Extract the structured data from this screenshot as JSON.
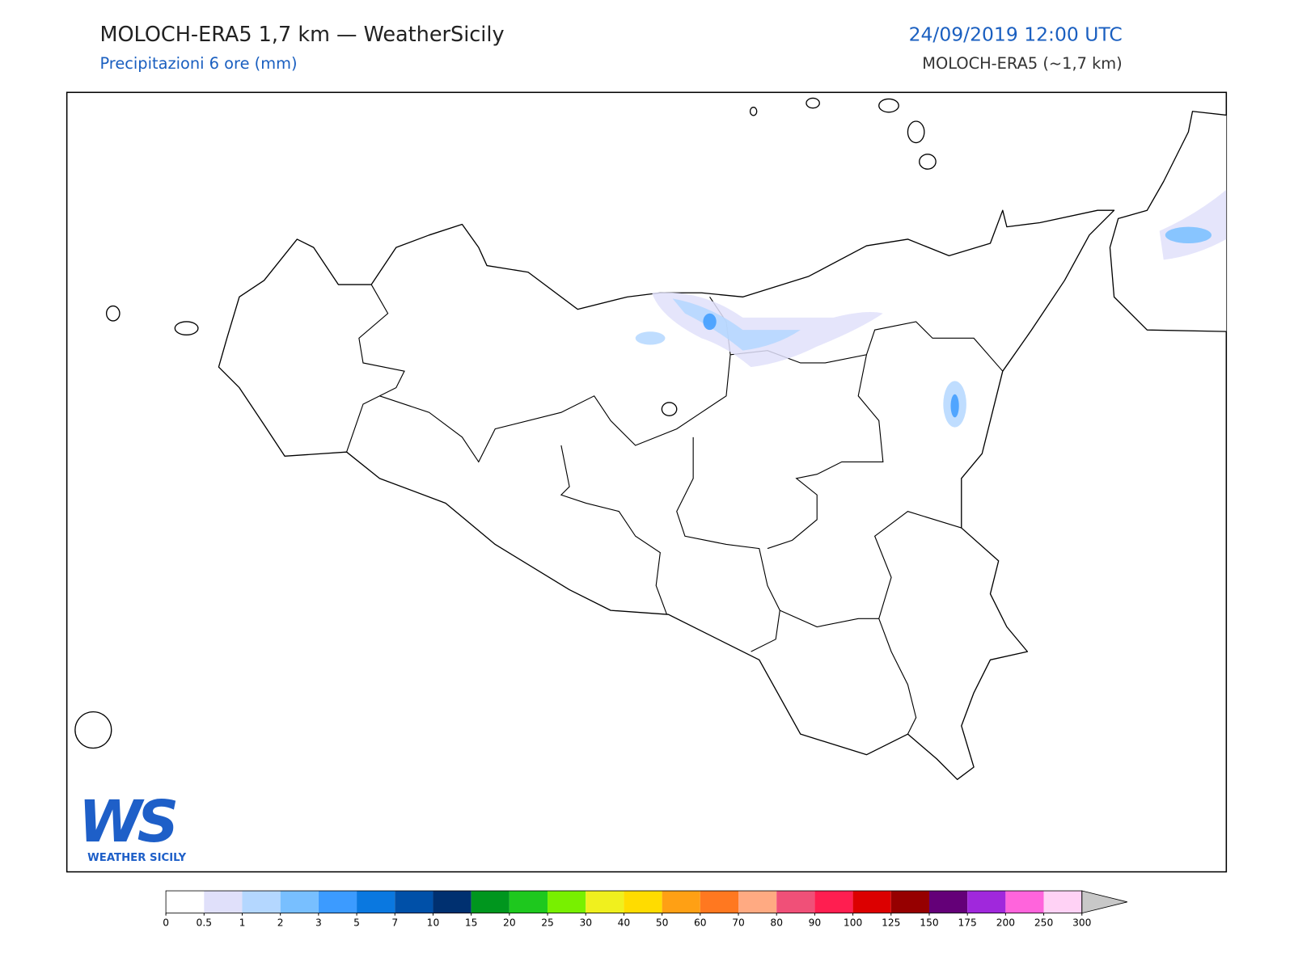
{
  "header": {
    "title": "MOLOCH-ERA5 1,7 km — WeatherSicily",
    "subtitle": "Precipitazioni 6 ore (mm)",
    "datetime": "24/09/2019 12:00 UTC",
    "model": "MOLOCH-ERA5 (~1,7 km)"
  },
  "logo": {
    "mark": "WS",
    "text": "WEATHER SICILY"
  },
  "colorbar": {
    "ticks": [
      0,
      0.5,
      1,
      2,
      3,
      5,
      7,
      10,
      15,
      20,
      25,
      30,
      40,
      50,
      60,
      70,
      80,
      90,
      100,
      125,
      150,
      175,
      200,
      250,
      300
    ],
    "colors": [
      "#ffffff",
      "#e0e0fa",
      "#b4d7ff",
      "#78bfff",
      "#3c9bff",
      "#0a78e0",
      "#0050a8",
      "#003070",
      "#00961e",
      "#1ec81e",
      "#78f000",
      "#f0f01e",
      "#ffdc00",
      "#ffa014",
      "#ff7820",
      "#ffaa82",
      "#f05078",
      "#ff1e50",
      "#dc0000",
      "#960000",
      "#640078",
      "#a028dc",
      "#ff64dc",
      "#ffd2f5"
    ],
    "extend_color": "#c8c8c8"
  }
}
